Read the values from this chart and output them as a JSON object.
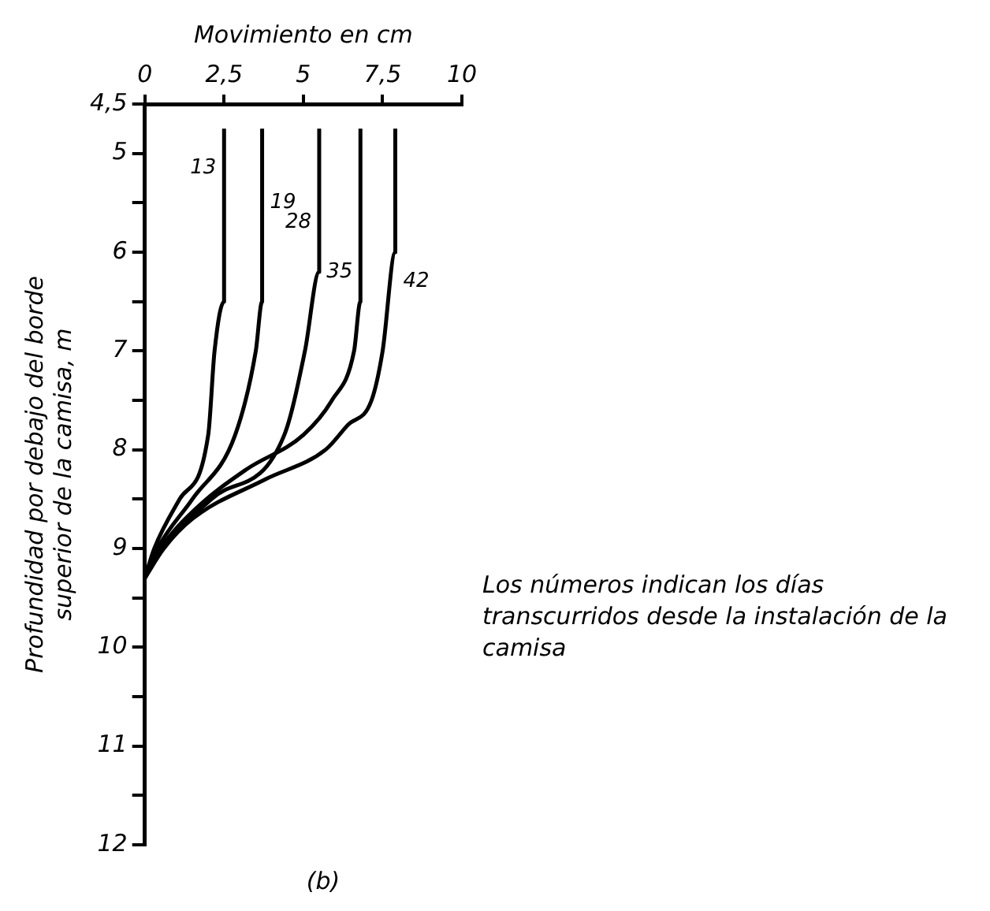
{
  "chart_data": {
    "type": "line",
    "xlabel": "Movimiento en cm",
    "ylabel": "Profundidad por debajo del borde superior de la camisa, m",
    "xlim": [
      0,
      10
    ],
    "xticks": [
      0,
      {
        "value": 2.5,
        "label": "2,5"
      },
      5,
      {
        "value": 7.5,
        "label": "7,5"
      },
      10
    ],
    "ylim": [
      12,
      4.5
    ],
    "yticks": [
      {
        "value": 4.5,
        "label": "4,5"
      },
      5,
      {
        "value": 5.5,
        "label": null
      },
      6,
      {
        "value": 6.5,
        "label": null
      },
      7,
      {
        "value": 7.5,
        "label": null
      },
      8,
      {
        "value": 8.5,
        "label": null
      },
      9,
      {
        "value": 9.5,
        "label": null
      },
      10,
      {
        "value": 10.5,
        "label": null
      },
      11,
      {
        "value": 11.5,
        "label": null
      },
      12
    ],
    "grid": false,
    "legend": false,
    "marker": "none",
    "line_style": "solid",
    "series": [
      {
        "name": "13",
        "color": "#000000",
        "x": [
          2.5,
          2.5,
          2.2,
          2.0,
          1.1,
          0.3,
          0
        ],
        "values": [
          4.75,
          6.5,
          7,
          7.85,
          8.5,
          9,
          9.3
        ]
      },
      {
        "name": "19",
        "color": "#000000",
        "x": [
          3.7,
          3.7,
          3.5,
          2.85,
          1.5,
          0.4,
          0
        ],
        "values": [
          4.75,
          6.5,
          7,
          7.85,
          8.5,
          9,
          9.3
        ]
      },
      {
        "name": "28",
        "color": "#000000",
        "x": [
          5.5,
          5.5,
          5.05,
          4.4,
          2.1,
          0.5,
          0
        ],
        "values": [
          4.75,
          6.2,
          7,
          7.85,
          8.5,
          9,
          9.3
        ]
      },
      {
        "name": "35",
        "color": "#000000",
        "x": [
          6.8,
          6.8,
          6.6,
          5.9,
          5.0,
          3.2,
          1.6,
          0.5,
          0
        ],
        "values": [
          4.75,
          6.5,
          7,
          7.5,
          7.85,
          8.2,
          8.6,
          9,
          9.3
        ]
      },
      {
        "name": "42",
        "color": "#000000",
        "x": [
          7.9,
          7.9,
          7.5,
          7.15,
          6.4,
          5.7,
          3.8,
          1.5,
          0.6,
          0
        ],
        "values": [
          4.75,
          6.0,
          7,
          7.5,
          7.75,
          8.0,
          8.3,
          8.7,
          9,
          9.3
        ]
      }
    ],
    "annotations": [
      "Los números indican los días transcurridos desde la instalación de la camisa",
      "(b)"
    ]
  }
}
